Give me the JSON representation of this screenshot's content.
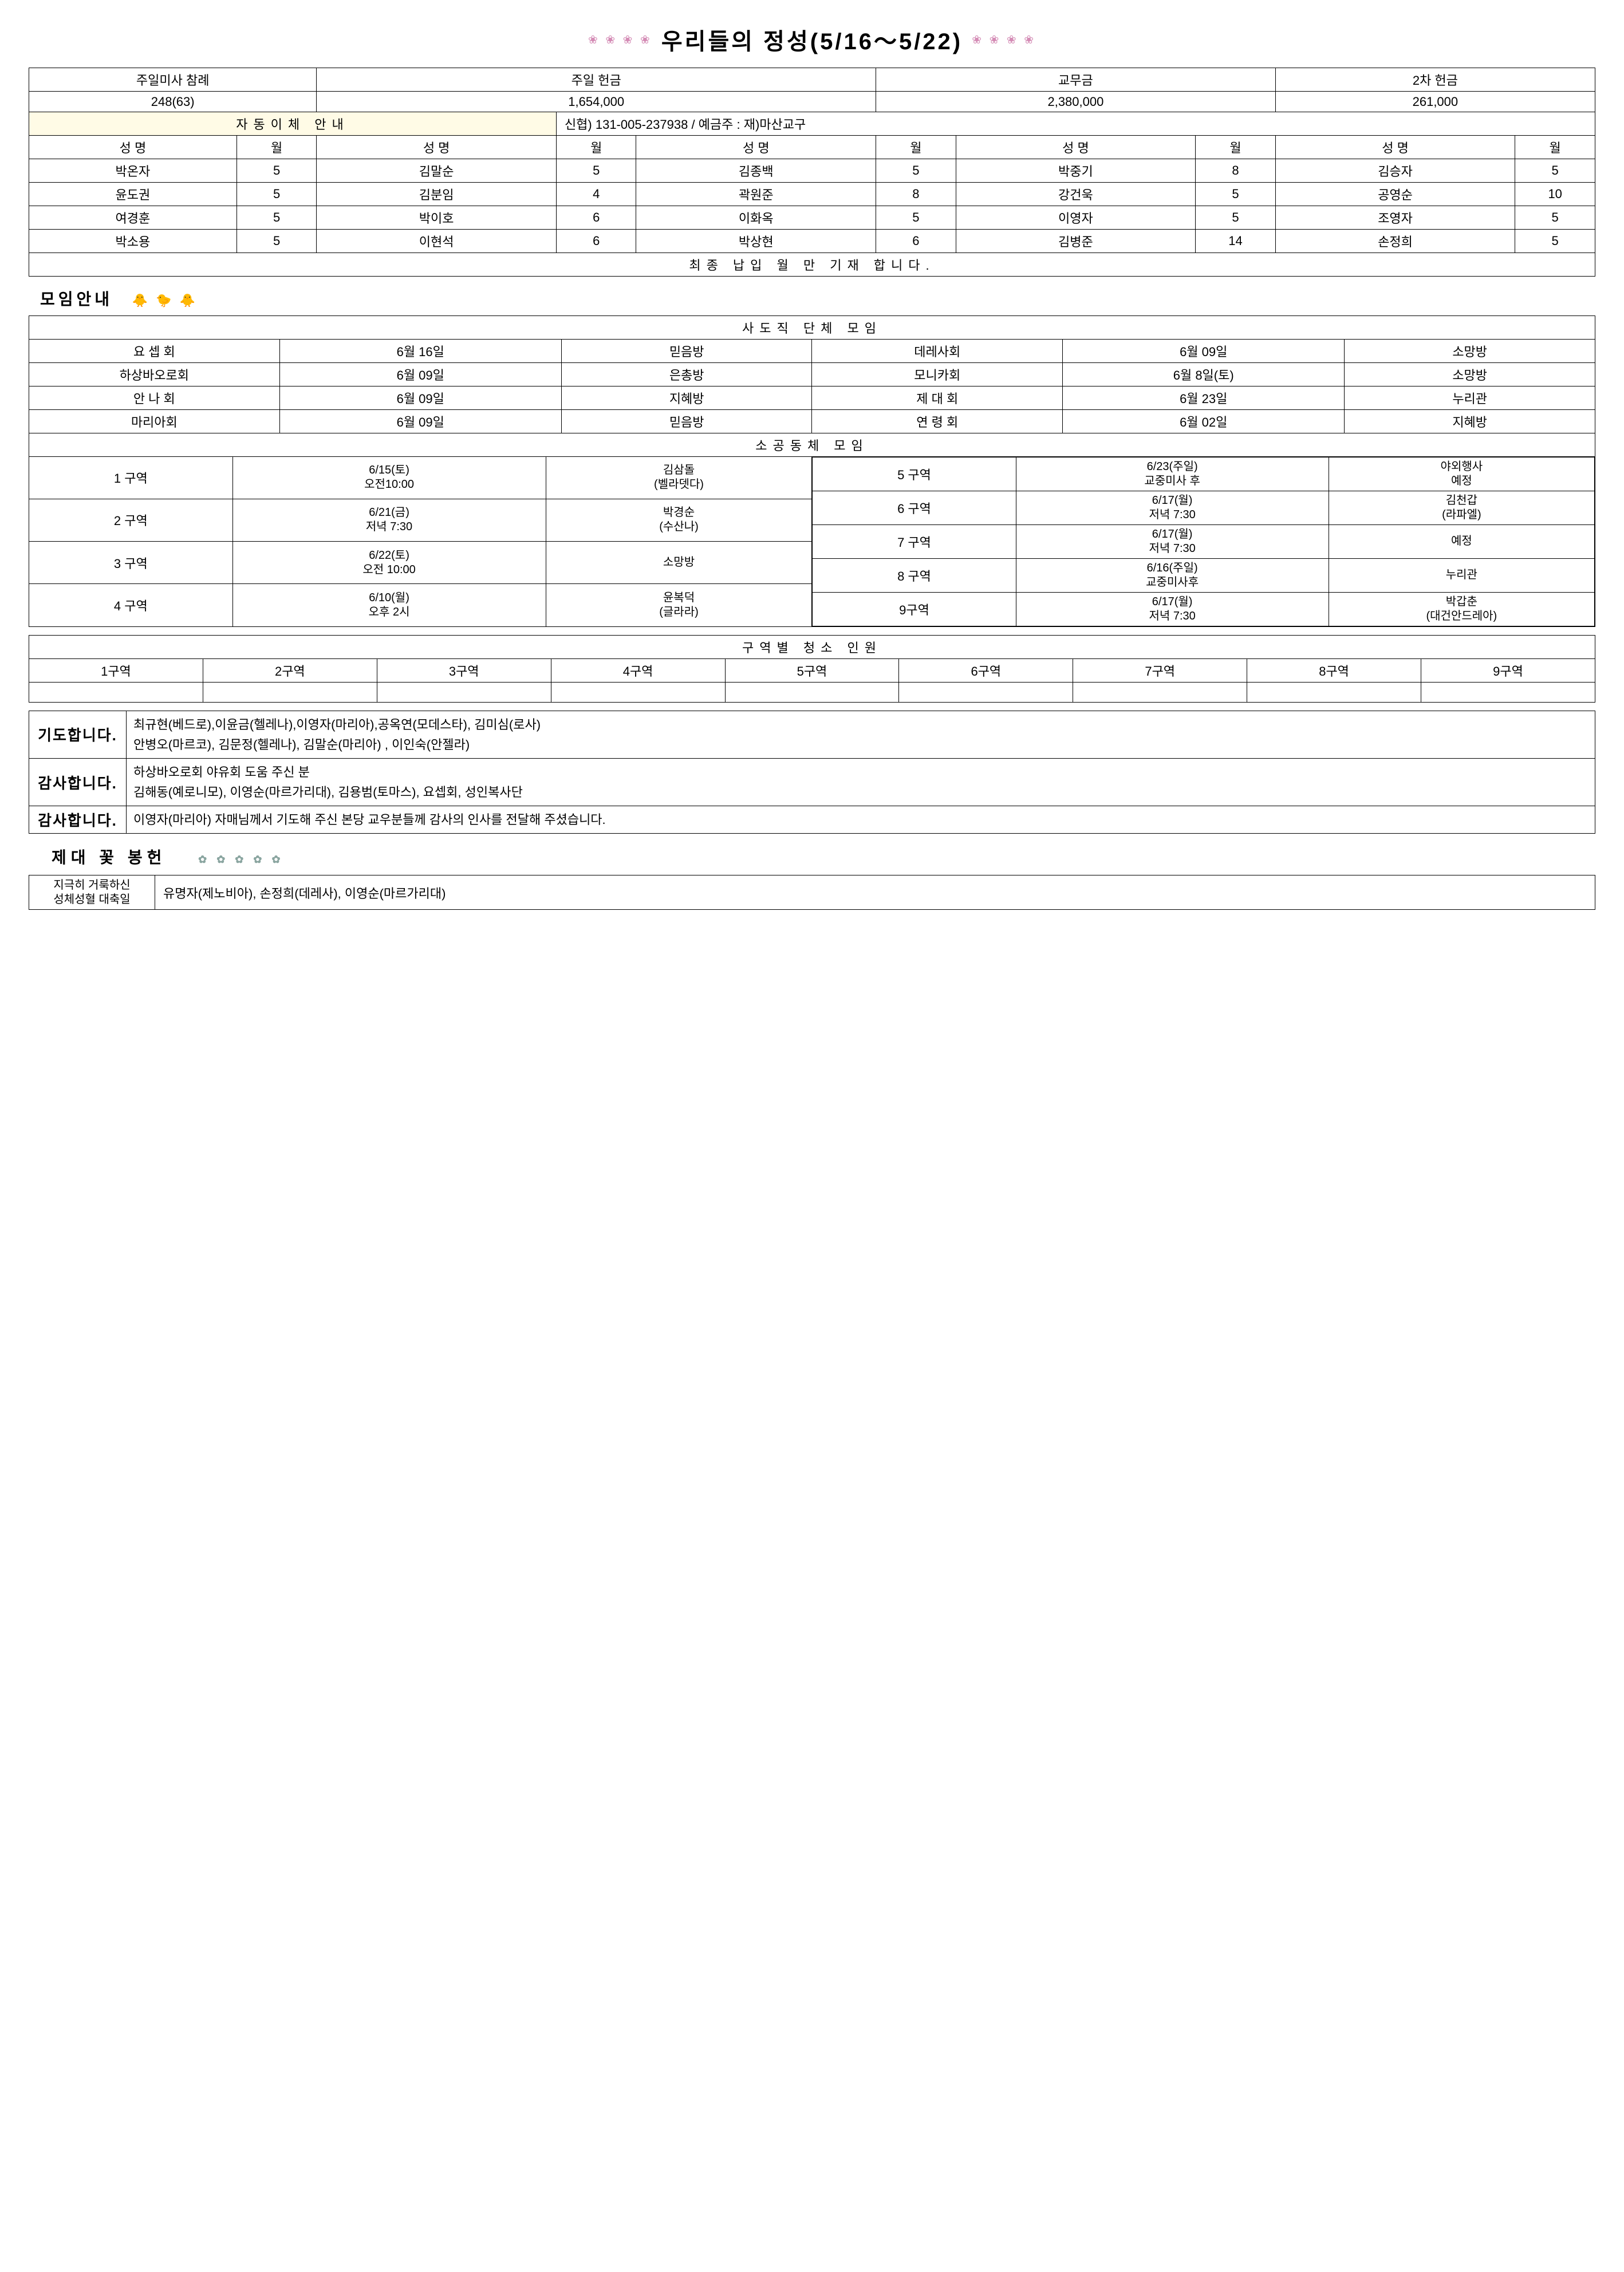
{
  "title": "우리들의 정성(5/16～5/22)",
  "deco_left": "❀ ❀ ❀ ❀",
  "deco_right": "❀ ❀ ❀ ❀",
  "donations": {
    "headers": [
      "주일미사 참례",
      "주일 헌금",
      "교무금",
      "2차 헌금"
    ],
    "values": [
      "248(63)",
      "1,654,000",
      "2,380,000",
      "261,000"
    ],
    "auto_label": "자동이체 안내",
    "auto_info": "신협) 131-005-237938 / 예금주 : 재)마산교구",
    "col_headers": {
      "name": "성    명",
      "month": "월"
    },
    "rows": [
      [
        {
          "n": "박온자",
          "m": "5"
        },
        {
          "n": "김말순",
          "m": "5"
        },
        {
          "n": "김종백",
          "m": "5"
        },
        {
          "n": "박중기",
          "m": "8"
        },
        {
          "n": "김승자",
          "m": "5"
        }
      ],
      [
        {
          "n": "윤도권",
          "m": "5"
        },
        {
          "n": "김분임",
          "m": "4"
        },
        {
          "n": "곽원준",
          "m": "8"
        },
        {
          "n": "강건욱",
          "m": "5"
        },
        {
          "n": "공영순",
          "m": "10"
        }
      ],
      [
        {
          "n": "여경훈",
          "m": "5"
        },
        {
          "n": "박이호",
          "m": "6"
        },
        {
          "n": "이화옥",
          "m": "5"
        },
        {
          "n": "이영자",
          "m": "5"
        },
        {
          "n": "조영자",
          "m": "5"
        }
      ],
      [
        {
          "n": "박소용",
          "m": "5"
        },
        {
          "n": "이현석",
          "m": "6"
        },
        {
          "n": "박상현",
          "m": "6"
        },
        {
          "n": "김병준",
          "m": "14"
        },
        {
          "n": "손정희",
          "m": "5"
        }
      ]
    ],
    "footer_note": "최종 납입 월 만 기재 합니다."
  },
  "meetings_heading": "모임안내",
  "meetings_deco": "🐥 🐤 🐥",
  "apostolic": {
    "title": "사도직 단체 모임",
    "rows": [
      [
        "요 셉 회",
        "6월 16일",
        "믿음방",
        "데레사회",
        "6월 09일",
        "소망방"
      ],
      [
        "하상바오로회",
        "6월 09일",
        "은총방",
        "모니카회",
        "6월 8일(토)",
        "소망방"
      ],
      [
        "안 나 회",
        "6월 09일",
        "지혜방",
        "제 대 회",
        "6월 23일",
        "누리관"
      ],
      [
        "마리아회",
        "6월 09일",
        "믿음방",
        "연 령 회",
        "6월 02일",
        "지혜방"
      ]
    ]
  },
  "small_group": {
    "title": "소공동체 모임",
    "left": [
      {
        "z": "1 구역",
        "t": "6/15(토)\n오전10:00",
        "p": "김삼돌\n(벨라뎃다)"
      },
      {
        "z": "2 구역",
        "t": "6/21(금)\n저녁 7:30",
        "p": "박경순\n(수산나)"
      },
      {
        "z": "3 구역",
        "t": "6/22(토)\n오전 10:00",
        "p": "소망방"
      },
      {
        "z": "4 구역",
        "t": "6/10(월)\n오후 2시",
        "p": "윤복덕\n(글라라)"
      }
    ],
    "right": [
      {
        "z": "5 구역",
        "t": "6/23(주일)\n교중미사 후",
        "p": "야외행사\n예정"
      },
      {
        "z": "6 구역",
        "t": "6/17(월)\n저녁 7:30",
        "p": "김천갑\n(라파엘)"
      },
      {
        "z": "7 구역",
        "t": "6/17(월)\n저녁 7:30",
        "p": "예정"
      },
      {
        "z": "8 구역",
        "t": "6/16(주일)\n교중미사후",
        "p": "누리관"
      },
      {
        "z": "9구역",
        "t": "6/17(월)\n저녁 7:30",
        "p": "박갑춘\n(대건안드레아)"
      }
    ]
  },
  "cleaning": {
    "title": "구역별 청소 인원",
    "headers": [
      "1구역",
      "2구역",
      "3구역",
      "4구역",
      "5구역",
      "6구역",
      "7구역",
      "8구역",
      "9구역"
    ]
  },
  "pray": {
    "label1": "기도합니다.",
    "text1": "최규현(베드로),이윤금(헬레나),이영자(마리아),공옥연(모데스타), 김미심(로사)\n안병오(마르코), 김문정(헬레나), 김말순(마리아) , 이인숙(안젤라)",
    "label2": "감사합니다.",
    "text2": "하상바오로회 야유회 도움 주신 분\n김해동(예로니모), 이영순(마르가리대), 김용범(토마스), 요셉회, 성인복사단",
    "label3": "감사합니다.",
    "text3": "이영자(마리아) 자매님께서 기도해 주신 본당 교우분들께 감사의 인사를 전달해 주셨습니다."
  },
  "flower_heading": "제대 꽃 봉헌",
  "flower_deco": "✿ ✿ ✿ ✿ ✿",
  "flower": {
    "label": "지극히   거룩하신\n성체성혈   대축일",
    "names": "유명자(제노비아), 손정희(데레사), 이영순(마르가리대)"
  }
}
